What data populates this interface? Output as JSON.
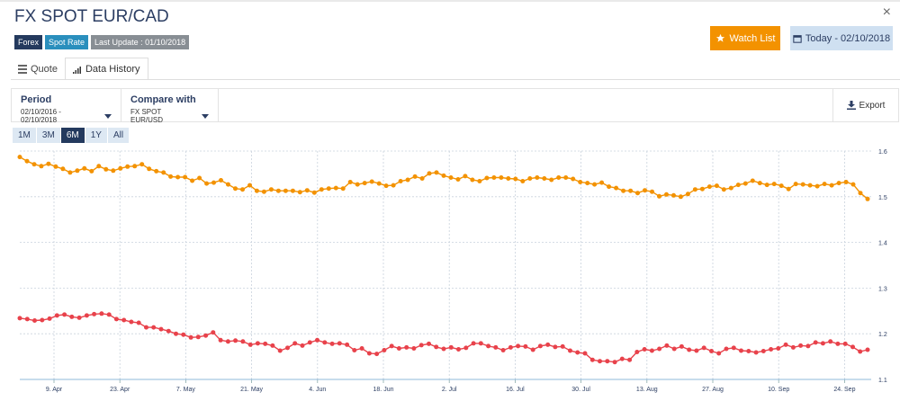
{
  "header": {
    "title": "FX SPOT EUR/CAD",
    "close_glyph": "×",
    "badges": [
      "Forex",
      "Spot Rate",
      "Last Update : 01/10/2018"
    ],
    "watch_label": "Watch List",
    "watch_icon": "star-icon",
    "today_label": "Today - 02/10/2018",
    "today_icon": "calendar-icon"
  },
  "tabs": [
    {
      "label": "Quote",
      "icon": "grid-icon",
      "active": false
    },
    {
      "label": "Data History",
      "icon": "bar-chart-icon",
      "active": true
    }
  ],
  "toolbar": {
    "period_label": "Period",
    "period_value": "02/10/2016 - 02/10/2018",
    "compare_label": "Compare with",
    "compare_value": "FX SPOT EUR/USD",
    "export_label": "Export",
    "export_icon": "download-icon"
  },
  "range_buttons": [
    "1M",
    "3M",
    "6M",
    "1Y",
    "All"
  ],
  "range_active": "6M",
  "colors": {
    "accent_orange": "#f39200",
    "series_red": "#e8424b",
    "navy": "#243a5e",
    "light_blue": "#cfe0f1"
  },
  "chart_data": {
    "type": "line",
    "x_tick_labels": [
      "9. Apr",
      "23. Apr",
      "7. May",
      "21. May",
      "4. Jun",
      "18. Jun",
      "2. Jul",
      "16. Jul",
      "30. Jul",
      "13. Aug",
      "27. Aug",
      "10. Sep",
      "24. Sep"
    ],
    "y_tick_labels": [
      "1.1",
      "1.2",
      "1.3",
      "1.4",
      "1.5",
      "1.6"
    ],
    "ylim": [
      1.1,
      1.6
    ],
    "grid": true,
    "series": [
      {
        "color": "#f39200",
        "values": [
          1.587,
          1.578,
          1.571,
          1.567,
          1.572,
          1.566,
          1.561,
          1.553,
          1.557,
          1.562,
          1.556,
          1.567,
          1.56,
          1.557,
          1.562,
          1.566,
          1.567,
          1.571,
          1.561,
          1.556,
          1.553,
          1.544,
          1.543,
          1.543,
          1.535,
          1.541,
          1.529,
          1.531,
          1.536,
          1.527,
          1.518,
          1.516,
          1.525,
          1.513,
          1.511,
          1.516,
          1.513,
          1.513,
          1.513,
          1.51,
          1.514,
          1.509,
          1.516,
          1.518,
          1.519,
          1.518,
          1.532,
          1.527,
          1.53,
          1.533,
          1.529,
          1.524,
          1.525,
          1.534,
          1.537,
          1.544,
          1.54,
          1.551,
          1.553,
          1.546,
          1.542,
          1.538,
          1.545,
          1.537,
          1.534,
          1.541,
          1.542,
          1.542,
          1.54,
          1.539,
          1.534,
          1.54,
          1.542,
          1.54,
          1.537,
          1.542,
          1.542,
          1.539,
          1.532,
          1.53,
          1.527,
          1.531,
          1.522,
          1.519,
          1.513,
          1.513,
          1.508,
          1.514,
          1.511,
          1.501,
          1.505,
          1.503,
          1.5,
          1.506,
          1.516,
          1.517,
          1.522,
          1.524,
          1.516,
          1.519,
          1.526,
          1.529,
          1.535,
          1.53,
          1.526,
          1.528,
          1.524,
          1.517,
          1.528,
          1.527,
          1.525,
          1.523,
          1.528,
          1.525,
          1.53,
          1.532,
          1.527,
          1.508,
          1.495
        ]
      },
      {
        "color": "#e8424b",
        "values": [
          1.234,
          1.232,
          1.229,
          1.23,
          1.233,
          1.24,
          1.242,
          1.237,
          1.235,
          1.24,
          1.243,
          1.244,
          1.242,
          1.232,
          1.23,
          1.226,
          1.224,
          1.214,
          1.214,
          1.21,
          1.206,
          1.2,
          1.198,
          1.192,
          1.193,
          1.196,
          1.203,
          1.186,
          1.183,
          1.185,
          1.183,
          1.176,
          1.179,
          1.178,
          1.174,
          1.163,
          1.169,
          1.179,
          1.174,
          1.181,
          1.186,
          1.181,
          1.178,
          1.179,
          1.176,
          1.164,
          1.168,
          1.157,
          1.156,
          1.164,
          1.173,
          1.168,
          1.17,
          1.168,
          1.175,
          1.178,
          1.171,
          1.167,
          1.17,
          1.166,
          1.169,
          1.179,
          1.179,
          1.173,
          1.17,
          1.164,
          1.17,
          1.173,
          1.172,
          1.165,
          1.173,
          1.176,
          1.171,
          1.172,
          1.163,
          1.159,
          1.157,
          1.143,
          1.14,
          1.14,
          1.138,
          1.145,
          1.143,
          1.16,
          1.166,
          1.163,
          1.167,
          1.174,
          1.167,
          1.172,
          1.165,
          1.163,
          1.169,
          1.162,
          1.157,
          1.167,
          1.169,
          1.163,
          1.162,
          1.159,
          1.162,
          1.166,
          1.168,
          1.176,
          1.17,
          1.174,
          1.173,
          1.181,
          1.179,
          1.183,
          1.178,
          1.178,
          1.171,
          1.161,
          1.165
        ]
      }
    ]
  }
}
